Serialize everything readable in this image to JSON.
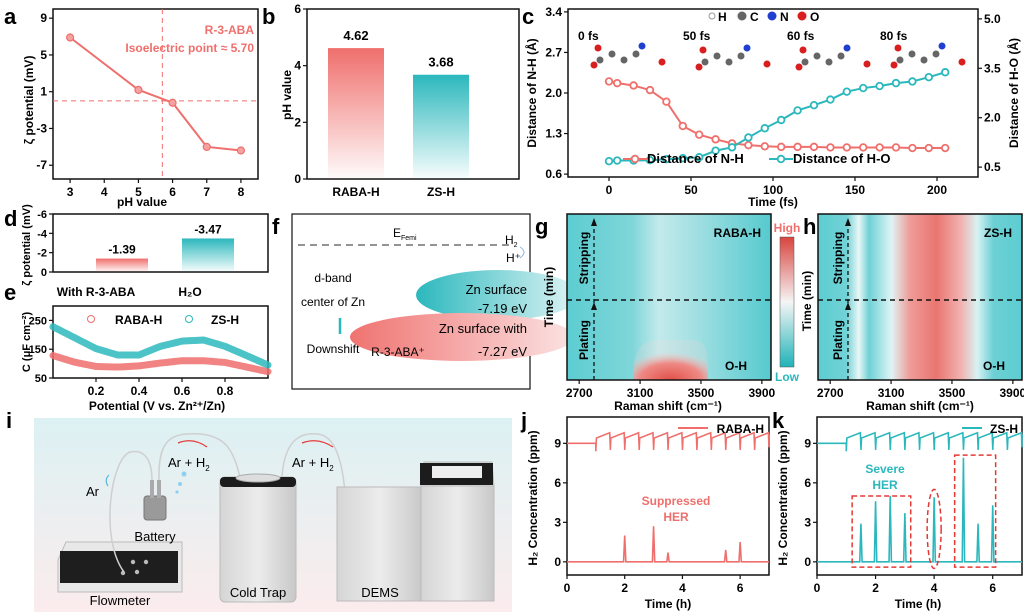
{
  "panel_labels": {
    "a": "a",
    "b": "b",
    "c": "c",
    "d": "d",
    "e": "e",
    "f": "f",
    "g": "g",
    "h": "h",
    "i": "i",
    "j": "j",
    "k": "k"
  },
  "colors": {
    "red": "#ef6f6c",
    "teal": "#2bb8bd",
    "text": "#111111"
  },
  "chart_data": [
    {
      "id": "a",
      "type": "line",
      "xlabel": "pH value",
      "ylabel": "ζ potential (mV)",
      "x": [
        3,
        5,
        6,
        7,
        8
      ],
      "y": [
        6.9,
        1.2,
        -0.2,
        -5.0,
        -5.4
      ],
      "xlim": [
        2.5,
        8.5
      ],
      "ylim": [
        -8.5,
        10
      ],
      "xticks": [
        "3",
        "4",
        "5",
        "6",
        "7",
        "8"
      ],
      "yticks": [
        "9",
        "5",
        "1",
        "-3",
        "-7"
      ],
      "annotation": [
        "R-3-ABA",
        "Isoelectric point ≈ 5.70"
      ],
      "isoelectric_point": 5.7
    },
    {
      "id": "b",
      "type": "bar",
      "categories": [
        "RABA-H",
        "ZS-H"
      ],
      "values": [
        4.62,
        3.68
      ],
      "labels": [
        "4.62",
        "3.68"
      ],
      "ylabel": "pH value",
      "ylim": [
        0,
        6
      ],
      "yticks": [
        "0",
        "2",
        "4",
        "6"
      ]
    },
    {
      "id": "c",
      "type": "line",
      "xlabel": "Time (fs)",
      "ylabel": "Distance of N-H (Å)",
      "y2label": "Distance of H-O (Å)",
      "xlim": [
        -25,
        225
      ],
      "ylim": [
        0.55,
        3.45
      ],
      "y2lim": [
        0.2,
        5.3
      ],
      "xticks": [
        "0",
        "50",
        "100",
        "150",
        "200"
      ],
      "yticks": [
        "0.6",
        "1.3",
        "2.0",
        "2.7",
        "3.4"
      ],
      "y2ticks": [
        "0.5",
        "2.0",
        "3.5",
        "5.0"
      ],
      "x": [
        0,
        5,
        15,
        25,
        35,
        45,
        55,
        65,
        75,
        85,
        95,
        105,
        115,
        125,
        135,
        145,
        155,
        165,
        175,
        185,
        195,
        205
      ],
      "series": [
        {
          "name": "Distance of N-H",
          "axis": "left",
          "values": [
            2.2,
            2.17,
            2.13,
            2.05,
            1.85,
            1.43,
            1.28,
            1.2,
            1.13,
            1.1,
            1.08,
            1.07,
            1.07,
            1.07,
            1.06,
            1.06,
            1.06,
            1.06,
            1.06,
            1.05,
            1.05,
            1.05
          ]
        },
        {
          "name": "Distance of H-O",
          "axis": "right",
          "values": [
            0.68,
            0.7,
            0.7,
            0.71,
            0.74,
            0.77,
            0.8,
            1.0,
            1.1,
            1.4,
            1.68,
            1.93,
            2.22,
            2.38,
            2.55,
            2.79,
            2.9,
            2.96,
            3.05,
            3.1,
            3.23,
            3.38
          ]
        }
      ],
      "atom_legend": [
        "H",
        "C",
        "N",
        "O"
      ],
      "snapshots": [
        "0 fs",
        "50 fs",
        "60 fs",
        "80 fs"
      ]
    },
    {
      "id": "d",
      "type": "bar",
      "categories": [
        "With R-3-ABA",
        "H₂O"
      ],
      "values": [
        -1.39,
        -3.47
      ],
      "labels": [
        "-1.39",
        "-3.47"
      ],
      "ylabel": "ζ potential (mV)",
      "ylim": [
        0,
        -6
      ],
      "yticks": [
        "0",
        "-2",
        "-4",
        "-6"
      ]
    },
    {
      "id": "e",
      "type": "scatter",
      "xlabel": "Potential (V vs. Zn²⁺/Zn)",
      "ylabel": "C (μF cm⁻²)",
      "xlim": [
        0,
        1
      ],
      "ylim": [
        50,
        300
      ],
      "xticks": [
        "0.2",
        "0.4",
        "0.6",
        "0.8"
      ],
      "yticks": [
        "50",
        "150",
        "250"
      ],
      "x": [
        0,
        0.1,
        0.2,
        0.3,
        0.4,
        0.5,
        0.6,
        0.7,
        0.8,
        0.9,
        1.0
      ],
      "series": [
        {
          "name": "RABA-H",
          "values": [
            128,
            105,
            90,
            88,
            92,
            102,
            110,
            110,
            104,
            88,
            72
          ]
        },
        {
          "name": "ZS-H",
          "values": [
            228,
            190,
            152,
            130,
            130,
            160,
            178,
            182,
            160,
            128,
            95
          ]
        }
      ]
    },
    {
      "id": "g",
      "type": "heatmap",
      "title": "RABA-H",
      "xlabel": "Raman shift (cm⁻¹)",
      "ylabel": "Time (min)",
      "xticks": [
        "2700",
        "3100",
        "3500",
        "3900"
      ],
      "xlim": [
        2620,
        3960
      ],
      "regions": [
        "Stripping",
        "Plating"
      ],
      "peak_label": "O-H",
      "colorbar": {
        "high": "High",
        "low": "Low"
      }
    },
    {
      "id": "h",
      "type": "heatmap",
      "title": "ZS-H",
      "xlabel": "Raman shift (cm⁻¹)",
      "ylabel": "Time (min)",
      "xticks": [
        "2700",
        "3100",
        "3500",
        "3900"
      ],
      "xlim": [
        2620,
        3960
      ],
      "regions": [
        "Stripping",
        "Plating"
      ],
      "peak_label": "O-H"
    },
    {
      "id": "j",
      "type": "line",
      "xlabel": "Time (h)",
      "ylabel": "H₂ Concentration (ppm)",
      "xlim": [
        0,
        7
      ],
      "ylim": [
        -1,
        11
      ],
      "xticks": [
        "0",
        "2",
        "4",
        "6"
      ],
      "yticks": [
        "0",
        "3",
        "6",
        "9"
      ],
      "legend": "RABA-H",
      "annotation": [
        "Suppressed",
        "HER"
      ],
      "spikes": [
        {
          "t": 2.0,
          "v": 2.0
        },
        {
          "t": 3.0,
          "v": 2.7
        },
        {
          "t": 3.5,
          "v": 0.7
        },
        {
          "t": 5.5,
          "v": 0.9
        },
        {
          "t": 6.0,
          "v": 1.5
        }
      ],
      "baseline_top": 9
    },
    {
      "id": "k",
      "type": "line",
      "xlabel": "Time (h)",
      "ylabel": "H₂ Concentration (ppm)",
      "xlim": [
        0,
        7
      ],
      "ylim": [
        -1,
        11
      ],
      "xticks": [
        "0",
        "2",
        "4",
        "6"
      ],
      "yticks": [
        "0",
        "3",
        "6",
        "9"
      ],
      "legend": "ZS-H",
      "annotation": [
        "Severe",
        "HER"
      ],
      "spikes": [
        {
          "t": 1.5,
          "v": 2.9
        },
        {
          "t": 2.0,
          "v": 4.6
        },
        {
          "t": 2.5,
          "v": 5.0
        },
        {
          "t": 3.0,
          "v": 3.7
        },
        {
          "t": 4.0,
          "v": 4.9
        },
        {
          "t": 5.0,
          "v": 7.9
        },
        {
          "t": 5.5,
          "v": 2.9
        },
        {
          "t": 6.0,
          "v": 4.3
        }
      ],
      "baseline_top": 9
    }
  ],
  "panel_f": {
    "efermi": "E",
    "efermi_sub": "Femi",
    "h2": "H",
    "h2_sub": "2",
    "hplus": "H⁺",
    "dband": [
      "d-band",
      "center of Zn"
    ],
    "downshift": "Downshift",
    "zn_surface": "Zn surface",
    "zn_surface_value": "-7.19 eV",
    "zn_with": "Zn surface with",
    "zn_with_species": "R-3-ABA⁺",
    "zn_with_value": "-7.27 eV"
  },
  "panel_i": {
    "ar": "Ar",
    "ar_h2": "Ar + H",
    "ar_h2_sub": "2",
    "battery": "Battery",
    "flowmeter": "Flowmeter",
    "cold_trap": "Cold Trap",
    "dems": "DEMS"
  }
}
